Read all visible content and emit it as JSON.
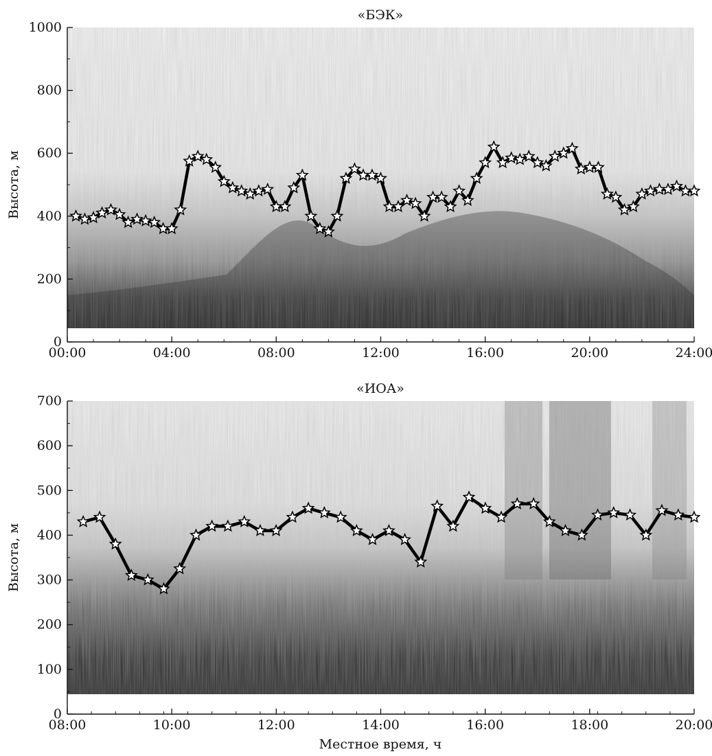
{
  "chart_data": [
    {
      "type": "line",
      "title": "«БЭК»",
      "xlabel": "",
      "ylabel": "Высота, м",
      "x_ticks": [
        "00:00",
        "04:00",
        "08:00",
        "12:00",
        "16:00",
        "20:00",
        "24:00"
      ],
      "y_ticks": [
        "0",
        "200",
        "400",
        "600",
        "800",
        "1000"
      ],
      "xlim": [
        0,
        24
      ],
      "ylim": [
        0,
        1000
      ],
      "background": "grayscale time-height backscatter image",
      "series": [
        {
          "x": [
            0.33,
            0.67,
            1.0,
            1.33,
            1.67,
            2.0,
            2.33,
            2.67,
            3.0,
            3.33,
            3.67,
            4.0,
            4.33,
            4.67,
            5.0,
            5.33,
            5.67,
            6.0,
            6.33,
            6.67,
            7.0,
            7.33,
            7.67,
            8.0,
            8.33,
            8.67,
            9.0,
            9.33,
            9.67,
            10.0,
            10.33,
            10.67,
            11.0,
            11.33,
            11.67,
            12.0,
            12.33,
            12.67,
            13.0,
            13.33,
            13.67,
            14.0,
            14.33,
            14.67,
            15.0,
            15.33,
            15.67,
            16.0,
            16.33,
            16.67,
            17.0,
            17.33,
            17.67,
            18.0,
            18.33,
            18.67,
            19.0,
            19.33,
            19.67,
            20.0,
            20.33,
            20.67,
            21.0,
            21.33,
            21.67,
            22.0,
            22.33,
            22.67,
            23.0,
            23.33,
            23.67,
            24.0
          ],
          "y": [
            400,
            390,
            395,
            410,
            420,
            405,
            380,
            390,
            385,
            380,
            360,
            360,
            420,
            575,
            590,
            580,
            555,
            510,
            490,
            480,
            470,
            480,
            485,
            430,
            430,
            490,
            530,
            400,
            360,
            350,
            400,
            520,
            550,
            530,
            530,
            520,
            430,
            430,
            450,
            440,
            400,
            460,
            460,
            430,
            480,
            450,
            520,
            570,
            620,
            570,
            585,
            580,
            590,
            570,
            560,
            590,
            600,
            615,
            550,
            555,
            555,
            470,
            460,
            420,
            430,
            470,
            480,
            485,
            485,
            495,
            480,
            480
          ]
        }
      ]
    },
    {
      "type": "line",
      "title": "«ИОА»",
      "xlabel": "Местное время, ч",
      "ylabel": "Высота, м",
      "x_ticks": [
        "08:00",
        "10:00",
        "12:00",
        "14:00",
        "16:00",
        "18:00",
        "20:00"
      ],
      "y_ticks": [
        "0",
        "100",
        "200",
        "300",
        "400",
        "500",
        "600",
        "700"
      ],
      "xlim": [
        8,
        21
      ],
      "ylim": [
        0,
        700
      ],
      "background": "grayscale time-height backscatter image",
      "series": [
        {
          "x": [
            8.33,
            8.67,
            9.0,
            9.33,
            9.67,
            10.0,
            10.33,
            10.67,
            11.0,
            11.33,
            11.67,
            12.0,
            12.33,
            12.67,
            13.0,
            13.33,
            13.67,
            14.0,
            14.33,
            14.67,
            15.0,
            15.33,
            15.67,
            16.0,
            16.33,
            16.67,
            17.0,
            17.33,
            17.67,
            18.0,
            18.33,
            18.67,
            19.0,
            19.33,
            19.67,
            20.0,
            20.33,
            20.67,
            21.0
          ],
          "y": [
            430,
            440,
            380,
            310,
            300,
            280,
            325,
            400,
            420,
            420,
            430,
            410,
            410,
            440,
            460,
            450,
            440,
            410,
            390,
            410,
            390,
            340,
            465,
            420,
            485,
            460,
            440,
            470,
            470,
            430,
            410,
            400,
            445,
            450,
            445,
            400,
            455,
            445,
            440
          ]
        }
      ]
    }
  ]
}
